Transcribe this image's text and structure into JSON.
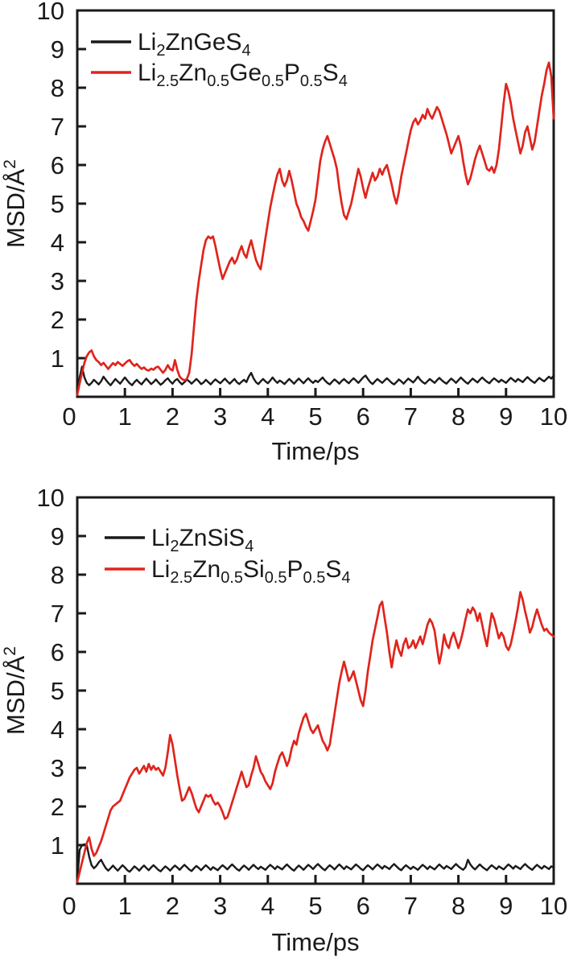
{
  "page": {
    "background": "#ffffff"
  },
  "colors": {
    "axis": "#1a1a1a",
    "black_series": "#1a1a1a",
    "red_series": "#e0241c"
  },
  "chart_data": [
    {
      "type": "line",
      "panel": "top",
      "xlabel": "Time/ps",
      "ylabel": "MSD/Å^{2}",
      "xlim": [
        0,
        10
      ],
      "ylim": [
        0,
        10
      ],
      "x_ticks": [
        0,
        1,
        2,
        3,
        4,
        5,
        6,
        7,
        8,
        9,
        10
      ],
      "y_ticks": [
        1,
        2,
        3,
        4,
        5,
        6,
        7,
        8,
        9,
        10
      ],
      "grid": false,
      "legend_position": "upper-left",
      "series": [
        {
          "name": "Li_{2}ZnGeS_{4}",
          "color": "#1a1a1a",
          "t0": 0,
          "dt": 0.05,
          "values": [
            0.1,
            0.5,
            0.78,
            0.5,
            0.36,
            0.3,
            0.36,
            0.44,
            0.38,
            0.32,
            0.4,
            0.52,
            0.44,
            0.36,
            0.3,
            0.38,
            0.46,
            0.4,
            0.34,
            0.42,
            0.5,
            0.42,
            0.35,
            0.3,
            0.38,
            0.44,
            0.37,
            0.32,
            0.4,
            0.47,
            0.4,
            0.33,
            0.38,
            0.45,
            0.38,
            0.31,
            0.36,
            0.43,
            0.48,
            0.4,
            0.34,
            0.42,
            0.46,
            0.38,
            0.32,
            0.38,
            0.45,
            0.4,
            0.34,
            0.4,
            0.46,
            0.4,
            0.33,
            0.37,
            0.44,
            0.38,
            0.32,
            0.39,
            0.45,
            0.4,
            0.35,
            0.41,
            0.47,
            0.4,
            0.34,
            0.4,
            0.46,
            0.38,
            0.33,
            0.39,
            0.44,
            0.38,
            0.52,
            0.62,
            0.48,
            0.38,
            0.33,
            0.4,
            0.46,
            0.4,
            0.35,
            0.42,
            0.5,
            0.42,
            0.36,
            0.42,
            0.38,
            0.33,
            0.4,
            0.46,
            0.4,
            0.34,
            0.41,
            0.47,
            0.41,
            0.35,
            0.42,
            0.48,
            0.41,
            0.36,
            0.42,
            0.38,
            0.44,
            0.5,
            0.42,
            0.36,
            0.32,
            0.39,
            0.45,
            0.4,
            0.34,
            0.41,
            0.46,
            0.4,
            0.35,
            0.42,
            0.48,
            0.42,
            0.36,
            0.43,
            0.5,
            0.55,
            0.46,
            0.38,
            0.33,
            0.4,
            0.46,
            0.41,
            0.36,
            0.42,
            0.48,
            0.42,
            0.36,
            0.32,
            0.38,
            0.45,
            0.4,
            0.34,
            0.41,
            0.47,
            0.42,
            0.37,
            0.44,
            0.52,
            0.44,
            0.38,
            0.34,
            0.4,
            0.46,
            0.41,
            0.36,
            0.43,
            0.49,
            0.43,
            0.38,
            0.34,
            0.41,
            0.47,
            0.42,
            0.36,
            0.43,
            0.5,
            0.44,
            0.38,
            0.34,
            0.41,
            0.47,
            0.42,
            0.37,
            0.44,
            0.5,
            0.44,
            0.39,
            0.35,
            0.42,
            0.48,
            0.43,
            0.38,
            0.44,
            0.4,
            0.36,
            0.43,
            0.49,
            0.44,
            0.39,
            0.46,
            0.42,
            0.38,
            0.45,
            0.51,
            0.45,
            0.4,
            0.36,
            0.43,
            0.49,
            0.44,
            0.4,
            0.46,
            0.52,
            0.47,
            0.55
          ]
        },
        {
          "name": "Li_{2.5}Zn_{0.5}Ge_{0.5}P_{0.5}S_{4}",
          "color": "#e0241c",
          "t0": 0,
          "dt": 0.05,
          "values": [
            0.05,
            0.35,
            0.62,
            0.88,
            1.05,
            1.15,
            1.2,
            1.05,
            0.95,
            0.9,
            0.82,
            0.88,
            0.8,
            0.72,
            0.8,
            0.87,
            0.82,
            0.9,
            0.85,
            0.8,
            0.86,
            0.92,
            0.95,
            0.86,
            0.8,
            0.85,
            0.78,
            0.72,
            0.76,
            0.7,
            0.68,
            0.73,
            0.7,
            0.76,
            0.78,
            0.7,
            0.62,
            0.7,
            0.82,
            0.72,
            0.68,
            0.95,
            0.7,
            0.52,
            0.46,
            0.43,
            0.46,
            0.62,
            1.1,
            1.8,
            2.5,
            3.0,
            3.4,
            3.8,
            4.05,
            4.15,
            4.1,
            4.15,
            3.9,
            3.6,
            3.3,
            3.05,
            3.2,
            3.35,
            3.5,
            3.6,
            3.45,
            3.55,
            3.75,
            3.9,
            3.7,
            3.6,
            3.85,
            4.05,
            3.8,
            3.55,
            3.4,
            3.3,
            3.7,
            4.1,
            4.5,
            4.9,
            5.2,
            5.5,
            5.75,
            5.9,
            5.6,
            5.45,
            5.6,
            5.85,
            5.6,
            5.3,
            5.0,
            4.85,
            4.65,
            4.55,
            4.4,
            4.3,
            4.55,
            4.8,
            5.1,
            5.6,
            6.1,
            6.4,
            6.6,
            6.75,
            6.55,
            6.35,
            6.15,
            5.9,
            5.4,
            5.0,
            4.7,
            4.6,
            4.8,
            5.0,
            5.3,
            5.6,
            5.9,
            5.7,
            5.4,
            5.15,
            5.4,
            5.6,
            5.8,
            5.6,
            5.7,
            5.9,
            5.75,
            5.9,
            6.0,
            5.75,
            5.5,
            5.2,
            5.0,
            5.3,
            5.7,
            6.0,
            6.3,
            6.6,
            6.9,
            7.1,
            7.2,
            7.05,
            7.15,
            7.3,
            7.2,
            7.45,
            7.3,
            7.2,
            7.35,
            7.5,
            7.4,
            7.2,
            7.0,
            6.8,
            6.55,
            6.3,
            6.45,
            6.6,
            6.75,
            6.5,
            6.1,
            5.75,
            5.5,
            5.65,
            5.9,
            6.15,
            6.35,
            6.5,
            6.3,
            6.1,
            5.9,
            5.85,
            5.95,
            5.8,
            6.0,
            6.4,
            7.0,
            7.6,
            8.1,
            7.9,
            7.6,
            7.2,
            6.9,
            6.6,
            6.3,
            6.5,
            6.85,
            7.0,
            6.7,
            6.4,
            6.6,
            7.0,
            7.4,
            7.8,
            8.1,
            8.45,
            8.65,
            8.3,
            7.2
          ]
        }
      ]
    },
    {
      "type": "line",
      "panel": "bottom",
      "xlabel": "Time/ps",
      "ylabel": "MSD/Å^{2}",
      "xlim": [
        0,
        10
      ],
      "ylim": [
        0,
        10
      ],
      "x_ticks": [
        0,
        1,
        2,
        3,
        4,
        5,
        6,
        7,
        8,
        9,
        10
      ],
      "y_ticks": [
        1,
        2,
        3,
        4,
        5,
        6,
        7,
        8,
        9,
        10
      ],
      "grid": false,
      "legend_position": "upper-left",
      "series": [
        {
          "name": "Li_{2}ZnSiS_{4}",
          "color": "#1a1a1a",
          "t0": 0,
          "dt": 0.05,
          "values": [
            0.1,
            0.88,
            1.0,
            1.02,
            1.0,
            0.7,
            0.48,
            0.4,
            0.46,
            0.55,
            0.62,
            0.5,
            0.4,
            0.34,
            0.4,
            0.47,
            0.4,
            0.34,
            0.41,
            0.48,
            0.42,
            0.35,
            0.31,
            0.38,
            0.45,
            0.4,
            0.34,
            0.41,
            0.47,
            0.41,
            0.35,
            0.42,
            0.48,
            0.42,
            0.36,
            0.32,
            0.39,
            0.45,
            0.4,
            0.34,
            0.41,
            0.47,
            0.42,
            0.36,
            0.43,
            0.49,
            0.43,
            0.37,
            0.33,
            0.4,
            0.46,
            0.41,
            0.35,
            0.42,
            0.48,
            0.42,
            0.36,
            0.43,
            0.39,
            0.35,
            0.42,
            0.48,
            0.43,
            0.37,
            0.44,
            0.5,
            0.44,
            0.38,
            0.34,
            0.41,
            0.47,
            0.42,
            0.36,
            0.43,
            0.49,
            0.43,
            0.38,
            0.44,
            0.4,
            0.36,
            0.43,
            0.49,
            0.44,
            0.38,
            0.45,
            0.41,
            0.37,
            0.44,
            0.5,
            0.44,
            0.38,
            0.34,
            0.41,
            0.47,
            0.42,
            0.36,
            0.43,
            0.49,
            0.44,
            0.38,
            0.45,
            0.51,
            0.45,
            0.39,
            0.35,
            0.42,
            0.48,
            0.43,
            0.37,
            0.44,
            0.5,
            0.44,
            0.38,
            0.45,
            0.41,
            0.37,
            0.44,
            0.5,
            0.45,
            0.39,
            0.35,
            0.42,
            0.48,
            0.43,
            0.37,
            0.44,
            0.5,
            0.45,
            0.39,
            0.46,
            0.42,
            0.38,
            0.45,
            0.51,
            0.45,
            0.39,
            0.35,
            0.42,
            0.48,
            0.43,
            0.38,
            0.44,
            0.4,
            0.36,
            0.43,
            0.49,
            0.44,
            0.38,
            0.45,
            0.41,
            0.37,
            0.44,
            0.5,
            0.44,
            0.39,
            0.46,
            0.42,
            0.38,
            0.45,
            0.51,
            0.45,
            0.4,
            0.36,
            0.43,
            0.62,
            0.5,
            0.42,
            0.37,
            0.44,
            0.5,
            0.44,
            0.39,
            0.35,
            0.42,
            0.48,
            0.43,
            0.38,
            0.45,
            0.41,
            0.37,
            0.44,
            0.5,
            0.45,
            0.39,
            0.46,
            0.42,
            0.38,
            0.45,
            0.51,
            0.45,
            0.4,
            0.36,
            0.43,
            0.49,
            0.44,
            0.39,
            0.46,
            0.42,
            0.38,
            0.45,
            0.42
          ]
        },
        {
          "name": "Li_{2.5}Zn_{0.5}Si_{0.5}P_{0.5}S_{4}",
          "color": "#e0241c",
          "t0": 0,
          "dt": 0.05,
          "values": [
            0.05,
            0.3,
            0.55,
            0.8,
            1.05,
            1.2,
            0.9,
            0.72,
            0.8,
            0.95,
            1.1,
            1.3,
            1.5,
            1.7,
            1.9,
            2.0,
            2.05,
            2.1,
            2.15,
            2.3,
            2.45,
            2.6,
            2.75,
            2.85,
            2.95,
            3.0,
            2.85,
            2.95,
            3.05,
            2.9,
            3.1,
            2.95,
            3.05,
            2.95,
            3.0,
            2.9,
            2.8,
            3.0,
            3.4,
            3.85,
            3.6,
            3.2,
            2.8,
            2.45,
            2.15,
            2.2,
            2.35,
            2.5,
            2.35,
            2.15,
            1.95,
            1.85,
            2.0,
            2.15,
            2.3,
            2.25,
            2.3,
            2.15,
            2.05,
            2.1,
            2.0,
            1.85,
            1.68,
            1.72,
            1.9,
            2.1,
            2.3,
            2.5,
            2.7,
            2.9,
            2.7,
            2.5,
            2.55,
            2.8,
            3.0,
            3.3,
            3.1,
            2.9,
            2.8,
            2.65,
            2.55,
            2.45,
            2.6,
            2.9,
            3.1,
            3.3,
            3.4,
            3.25,
            3.05,
            3.2,
            3.5,
            3.7,
            3.6,
            3.9,
            4.1,
            4.3,
            4.4,
            4.2,
            4.0,
            3.9,
            4.0,
            4.1,
            3.9,
            3.7,
            3.6,
            3.45,
            3.6,
            4.0,
            4.4,
            4.8,
            5.2,
            5.5,
            5.75,
            5.5,
            5.25,
            5.35,
            5.5,
            5.25,
            5.0,
            4.75,
            4.6,
            5.0,
            5.5,
            5.9,
            6.3,
            6.6,
            6.9,
            7.2,
            7.3,
            6.9,
            6.5,
            6.0,
            5.6,
            6.0,
            6.3,
            6.05,
            5.9,
            6.2,
            6.35,
            6.1,
            6.15,
            6.3,
            6.1,
            6.25,
            6.4,
            6.2,
            6.45,
            6.7,
            6.85,
            6.75,
            6.55,
            6.1,
            5.7,
            6.0,
            6.45,
            6.2,
            6.1,
            6.35,
            6.5,
            6.3,
            6.1,
            6.3,
            6.55,
            6.85,
            7.1,
            7.0,
            7.15,
            7.05,
            6.8,
            7.0,
            6.7,
            6.4,
            6.15,
            6.6,
            7.0,
            6.85,
            6.6,
            6.35,
            6.5,
            6.4,
            6.15,
            6.05,
            6.2,
            6.5,
            6.8,
            7.15,
            7.55,
            7.35,
            7.05,
            6.8,
            6.5,
            6.65,
            6.9,
            7.1,
            6.9,
            6.7,
            6.55,
            6.6,
            6.5,
            6.45,
            6.4
          ]
        }
      ]
    }
  ]
}
